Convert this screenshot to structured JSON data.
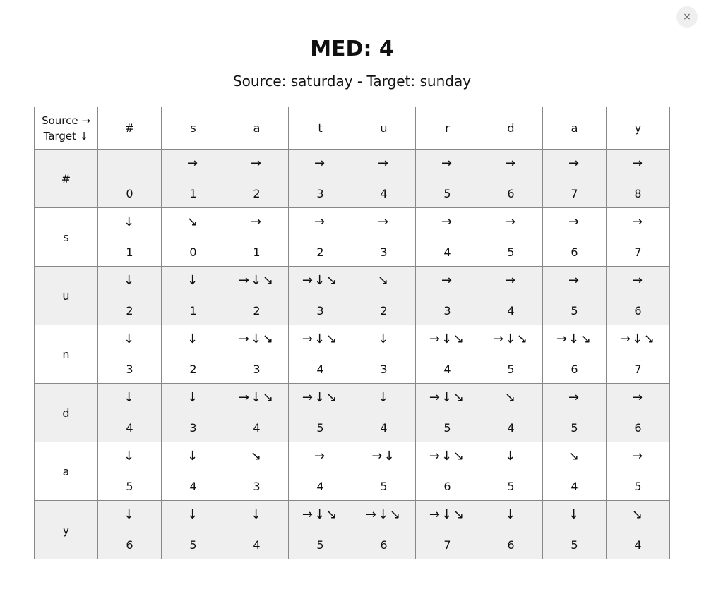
{
  "close_label": "×",
  "title": "MED: 4",
  "subtitle": "Source: saturday - Target: sunday",
  "corner": {
    "line1": "Source →",
    "line2": "Target ↓"
  },
  "columns": [
    "#",
    "s",
    "a",
    "t",
    "u",
    "r",
    "d",
    "a",
    "y"
  ],
  "rows": [
    {
      "label": "#",
      "cells": [
        {
          "arrows": "",
          "value": "0"
        },
        {
          "arrows": "→",
          "value": "1"
        },
        {
          "arrows": "→",
          "value": "2"
        },
        {
          "arrows": "→",
          "value": "3"
        },
        {
          "arrows": "→",
          "value": "4"
        },
        {
          "arrows": "→",
          "value": "5"
        },
        {
          "arrows": "→",
          "value": "6"
        },
        {
          "arrows": "→",
          "value": "7"
        },
        {
          "arrows": "→",
          "value": "8"
        }
      ]
    },
    {
      "label": "s",
      "cells": [
        {
          "arrows": "↓",
          "value": "1"
        },
        {
          "arrows": "↘",
          "value": "0"
        },
        {
          "arrows": "→",
          "value": "1"
        },
        {
          "arrows": "→",
          "value": "2"
        },
        {
          "arrows": "→",
          "value": "3"
        },
        {
          "arrows": "→",
          "value": "4"
        },
        {
          "arrows": "→",
          "value": "5"
        },
        {
          "arrows": "→",
          "value": "6"
        },
        {
          "arrows": "→",
          "value": "7"
        }
      ]
    },
    {
      "label": "u",
      "cells": [
        {
          "arrows": "↓",
          "value": "2"
        },
        {
          "arrows": "↓",
          "value": "1"
        },
        {
          "arrows": "→↓↘",
          "value": "2"
        },
        {
          "arrows": "→↓↘",
          "value": "3"
        },
        {
          "arrows": "↘",
          "value": "2"
        },
        {
          "arrows": "→",
          "value": "3"
        },
        {
          "arrows": "→",
          "value": "4"
        },
        {
          "arrows": "→",
          "value": "5"
        },
        {
          "arrows": "→",
          "value": "6"
        }
      ]
    },
    {
      "label": "n",
      "cells": [
        {
          "arrows": "↓",
          "value": "3"
        },
        {
          "arrows": "↓",
          "value": "2"
        },
        {
          "arrows": "→↓↘",
          "value": "3"
        },
        {
          "arrows": "→↓↘",
          "value": "4"
        },
        {
          "arrows": "↓",
          "value": "3"
        },
        {
          "arrows": "→↓↘",
          "value": "4"
        },
        {
          "arrows": "→↓↘",
          "value": "5"
        },
        {
          "arrows": "→↓↘",
          "value": "6"
        },
        {
          "arrows": "→↓↘",
          "value": "7"
        }
      ]
    },
    {
      "label": "d",
      "cells": [
        {
          "arrows": "↓",
          "value": "4"
        },
        {
          "arrows": "↓",
          "value": "3"
        },
        {
          "arrows": "→↓↘",
          "value": "4"
        },
        {
          "arrows": "→↓↘",
          "value": "5"
        },
        {
          "arrows": "↓",
          "value": "4"
        },
        {
          "arrows": "→↓↘",
          "value": "5"
        },
        {
          "arrows": "↘",
          "value": "4"
        },
        {
          "arrows": "→",
          "value": "5"
        },
        {
          "arrows": "→",
          "value": "6"
        }
      ]
    },
    {
      "label": "a",
      "cells": [
        {
          "arrows": "↓",
          "value": "5"
        },
        {
          "arrows": "↓",
          "value": "4"
        },
        {
          "arrows": "↘",
          "value": "3"
        },
        {
          "arrows": "→",
          "value": "4"
        },
        {
          "arrows": "→↓",
          "value": "5"
        },
        {
          "arrows": "→↓↘",
          "value": "6"
        },
        {
          "arrows": "↓",
          "value": "5"
        },
        {
          "arrows": "↘",
          "value": "4"
        },
        {
          "arrows": "→",
          "value": "5"
        }
      ]
    },
    {
      "label": "y",
      "cells": [
        {
          "arrows": "↓",
          "value": "6"
        },
        {
          "arrows": "↓",
          "value": "5"
        },
        {
          "arrows": "↓",
          "value": "4"
        },
        {
          "arrows": "→↓↘",
          "value": "5"
        },
        {
          "arrows": "→↓↘",
          "value": "6"
        },
        {
          "arrows": "→↓↘",
          "value": "7"
        },
        {
          "arrows": "↓",
          "value": "6"
        },
        {
          "arrows": "↓",
          "value": "5"
        },
        {
          "arrows": "↘",
          "value": "4"
        }
      ]
    }
  ]
}
